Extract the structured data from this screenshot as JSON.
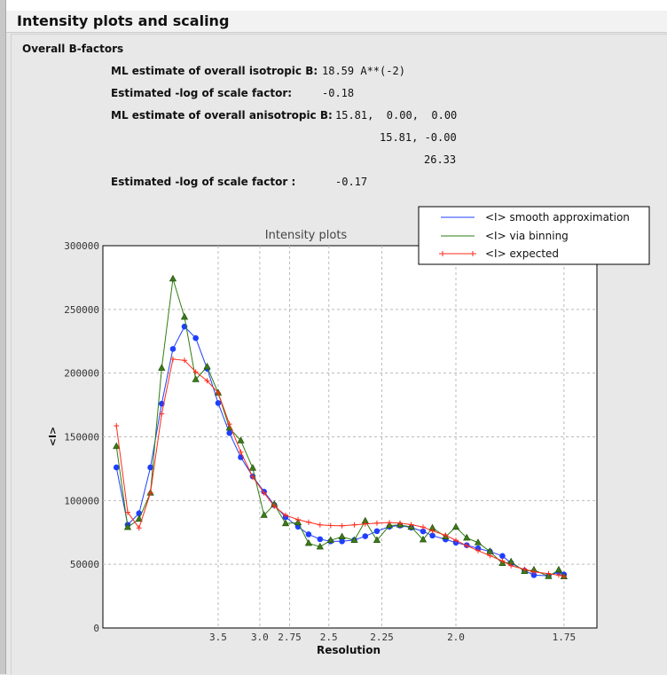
{
  "header": {
    "title": "Intensity plots and scaling"
  },
  "bfactors": {
    "section_title": "Overall B-factors",
    "rows": [
      {
        "label": "ML estimate of overall isotropic B:",
        "value": "18.59 A**(-2)"
      },
      {
        "label": "Estimated -log of scale factor:",
        "value": "-0.18"
      },
      {
        "label": "ML estimate of overall anisotropic B:",
        "value": "15.81,  0.00,  0.00"
      },
      {
        "label": "",
        "value": "15.81, -0.00"
      },
      {
        "label": "",
        "value": "26.33"
      },
      {
        "label": "Estimated -log of scale factor :",
        "value": "-0.17"
      }
    ]
  },
  "chart_data": {
    "type": "line",
    "title": "Intensity plots",
    "xlabel": "Resolution",
    "ylabel": "<I>",
    "x_scale": "reciprocal-square (1/d^2)",
    "x_ticks": [
      "3.5",
      "3.0",
      "2.75",
      "2.5",
      "2.25",
      "2.0",
      "1.75"
    ],
    "y_ticks": [
      "0",
      "50000",
      "100000",
      "150000",
      "200000",
      "250000",
      "300000"
    ],
    "ylim": [
      0,
      300000
    ],
    "grid": true,
    "legend_position": "top-right",
    "x": [
      10.22,
      7.54,
      6.25,
      5.45,
      4.9,
      4.49,
      4.16,
      3.9,
      3.68,
      3.5,
      3.34,
      3.2,
      3.07,
      2.96,
      2.87,
      2.78,
      2.69,
      2.62,
      2.55,
      2.49,
      2.43,
      2.37,
      2.32,
      2.27,
      2.22,
      2.18,
      2.14,
      2.1,
      2.07,
      2.03,
      2.0,
      1.97,
      1.94,
      1.91,
      1.88,
      1.86,
      1.83,
      1.81,
      1.78,
      1.76,
      1.75
    ],
    "series": [
      {
        "name": "<I> smooth approximation",
        "color": "#1f3fff",
        "marker": "circle",
        "values": [
          126000,
          81000,
          90000,
          126000,
          176000,
          219000,
          236500,
          227500,
          203500,
          176500,
          153000,
          134000,
          119000,
          107000,
          96500,
          87000,
          79500,
          73500,
          69700,
          68000,
          68000,
          69000,
          72000,
          76000,
          79500,
          80400,
          78800,
          75800,
          72500,
          69500,
          67000,
          65000,
          62500,
          60000,
          56500,
          51000,
          45000,
          41500,
          41000,
          44000,
          42000
        ]
      },
      {
        "name": "<I> via binning",
        "color": "#2e7d12",
        "marker": "triangle",
        "values": [
          142500,
          79000,
          85500,
          106000,
          204000,
          274000,
          244000,
          195000,
          205000,
          184500,
          157000,
          147000,
          125500,
          88500,
          97000,
          82000,
          82700,
          66500,
          63700,
          68800,
          71600,
          68800,
          84000,
          68800,
          80400,
          80900,
          79200,
          69300,
          78500,
          71600,
          79200,
          70700,
          67000,
          60000,
          50700,
          51900,
          44500,
          45600,
          40500,
          45600,
          40300
        ]
      },
      {
        "name": "<I> expected",
        "color": "#ff2a1a",
        "marker": "plus",
        "values": [
          158700,
          90800,
          78500,
          106000,
          168000,
          211000,
          210000,
          201000,
          194000,
          184500,
          160000,
          138000,
          118500,
          106000,
          95500,
          88500,
          85000,
          83000,
          80900,
          80400,
          80200,
          80900,
          81600,
          82300,
          82700,
          82300,
          81100,
          79200,
          76200,
          72800,
          68800,
          64600,
          60700,
          56800,
          52600,
          48900,
          46100,
          44000,
          42600,
          41500,
          40500
        ]
      }
    ]
  }
}
